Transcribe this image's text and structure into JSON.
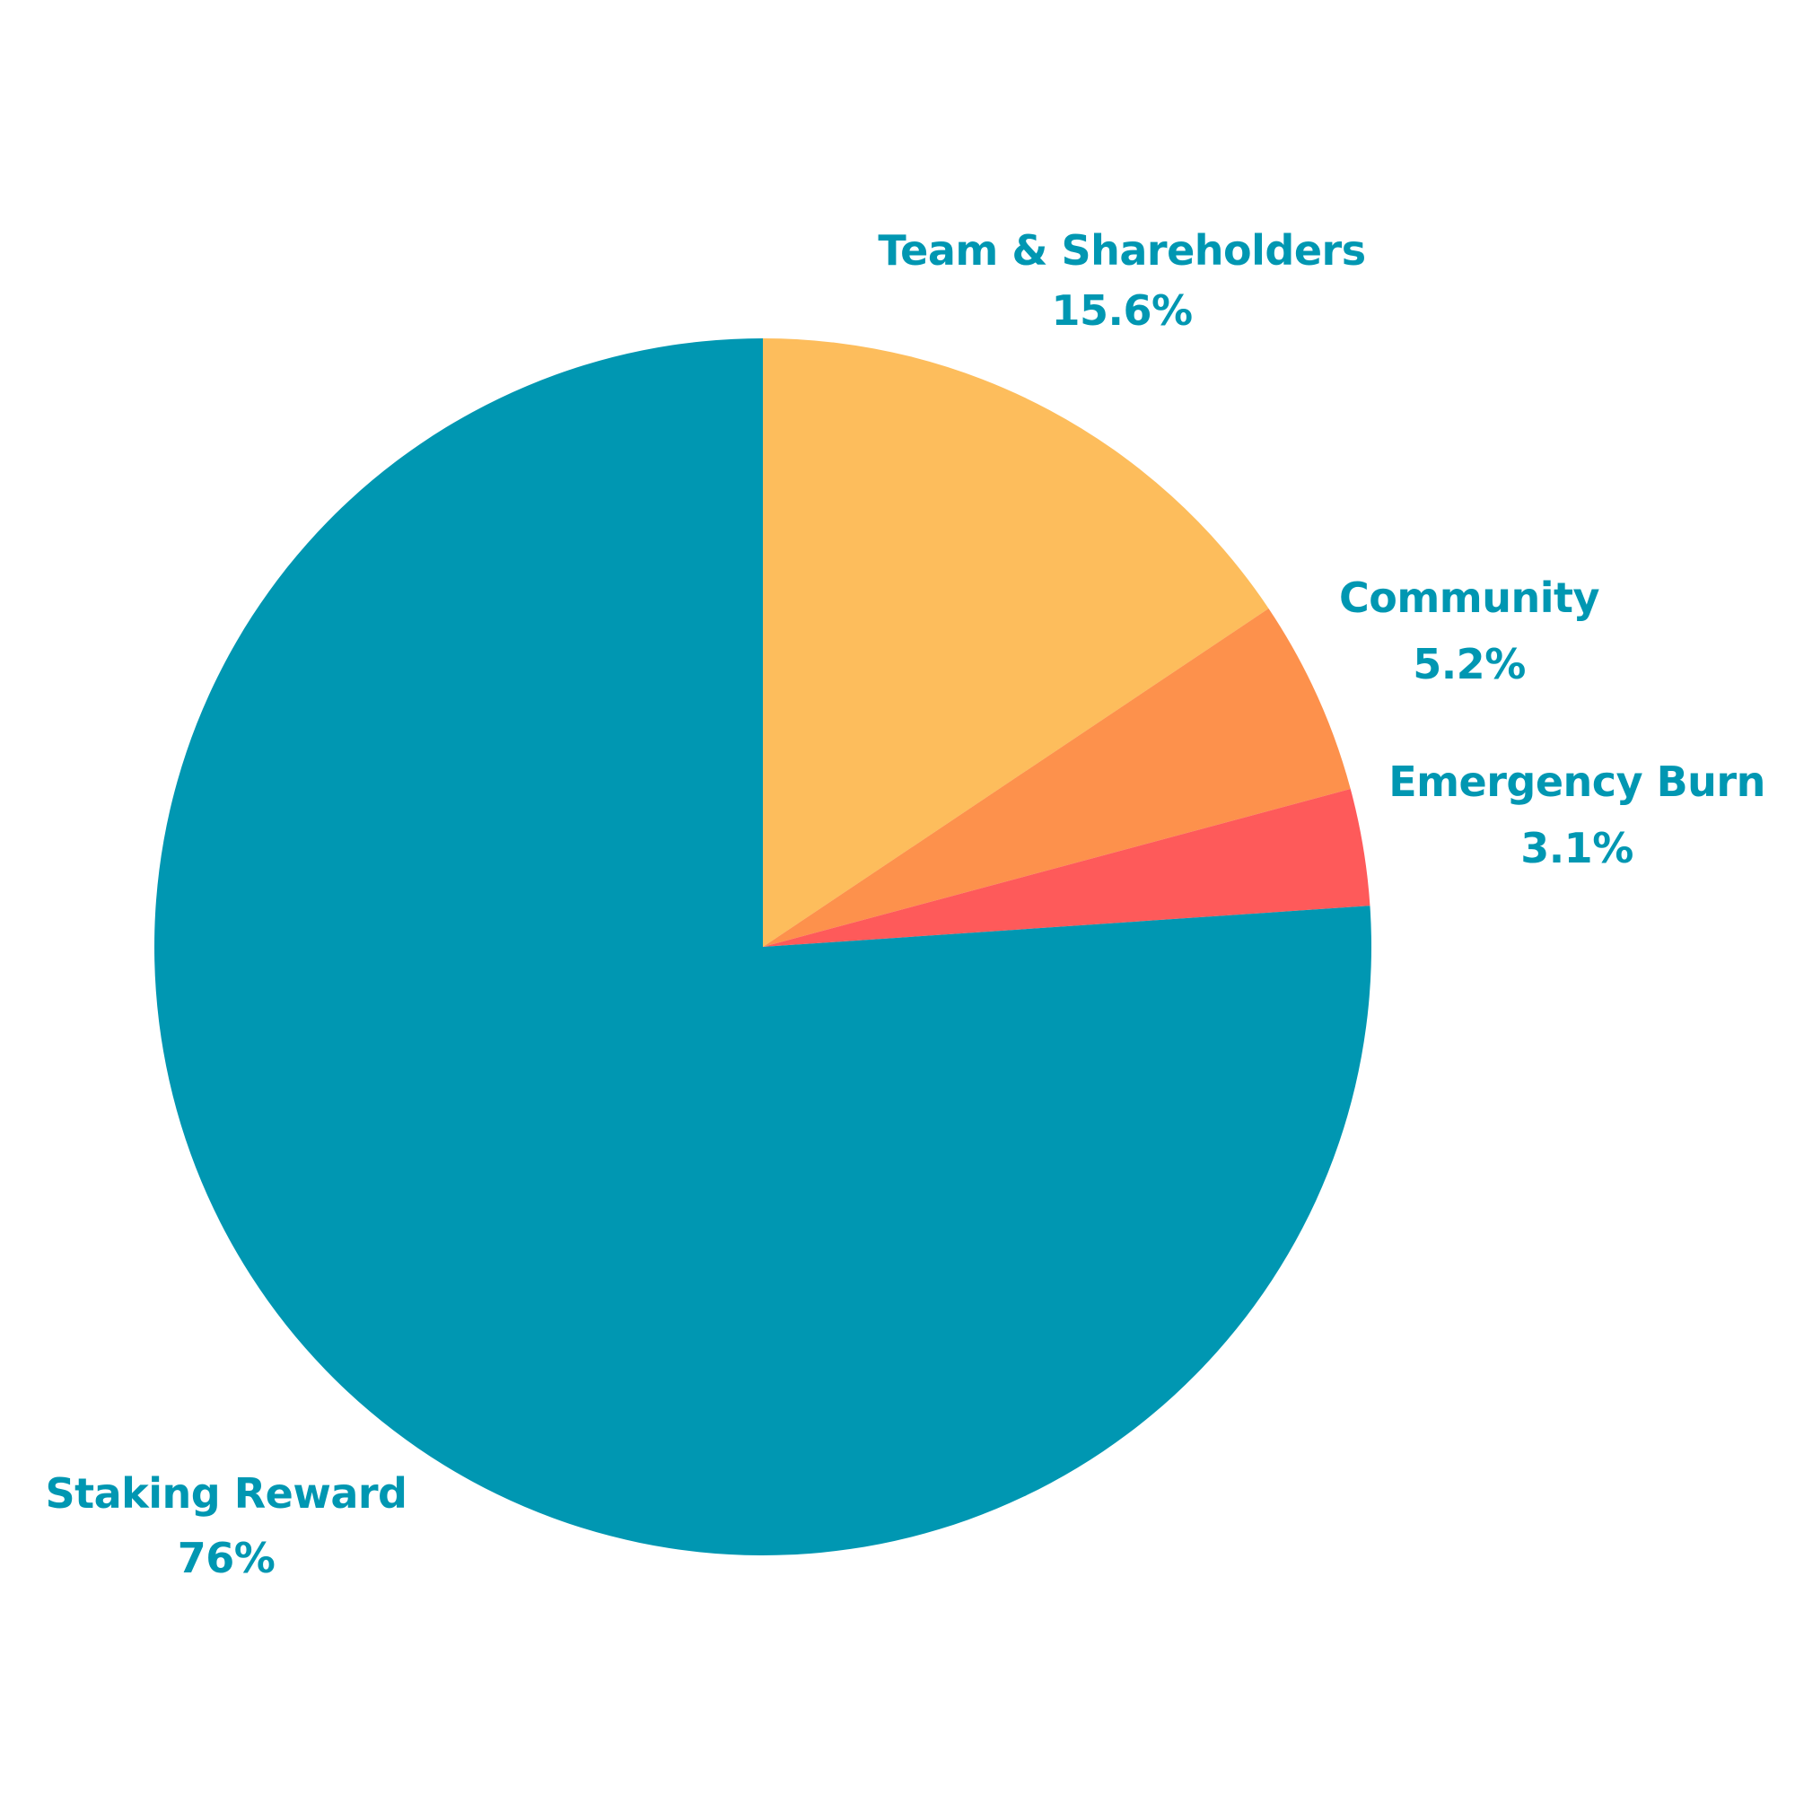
{
  "chart_data": {
    "type": "pie",
    "title": "",
    "label_color": "#0097b2",
    "slices": [
      {
        "label": "Team & Shareholders",
        "value": 15.6,
        "value_label": "15.6%",
        "color": "#fdbd5c"
      },
      {
        "label": "Community",
        "value": 5.2,
        "value_label": "5.2%",
        "color": "#fd914c"
      },
      {
        "label": "Emergency Burn",
        "value": 3.1,
        "value_label": "3.1%",
        "color": "#fe5a5a"
      },
      {
        "label": "Staking Reward",
        "value": 76,
        "value_label": "76%",
        "color": "#0097b2"
      }
    ]
  }
}
